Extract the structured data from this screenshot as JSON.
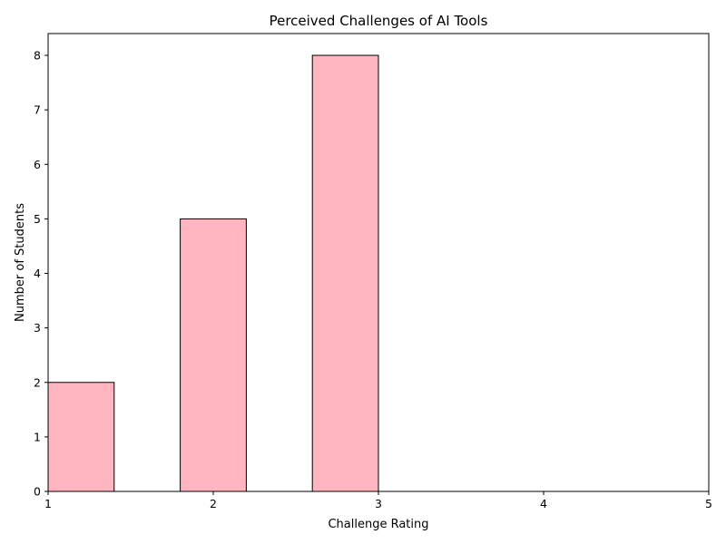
{
  "chart_data": {
    "type": "bar",
    "title": "Perceived Challenges of AI Tools",
    "xlabel": "Challenge Rating",
    "ylabel": "Number of Students",
    "xlim": [
      1,
      5
    ],
    "ylim": [
      0,
      8.4
    ],
    "x_ticks": [
      "1",
      "2",
      "3",
      "4",
      "5"
    ],
    "y_ticks": [
      "0",
      "1",
      "2",
      "3",
      "4",
      "5",
      "6",
      "7",
      "8"
    ],
    "bins": [
      {
        "x0": 1.0,
        "x1": 1.4,
        "value": 2
      },
      {
        "x0": 1.4,
        "x1": 1.8,
        "value": 0
      },
      {
        "x0": 1.8,
        "x1": 2.2,
        "value": 5
      },
      {
        "x0": 2.2,
        "x1": 2.6,
        "value": 0
      },
      {
        "x0": 2.6,
        "x1": 3.0,
        "value": 8
      }
    ],
    "bar_color": "#ffb6c1",
    "edge_color": "#000000",
    "grid": false,
    "legend": false
  }
}
